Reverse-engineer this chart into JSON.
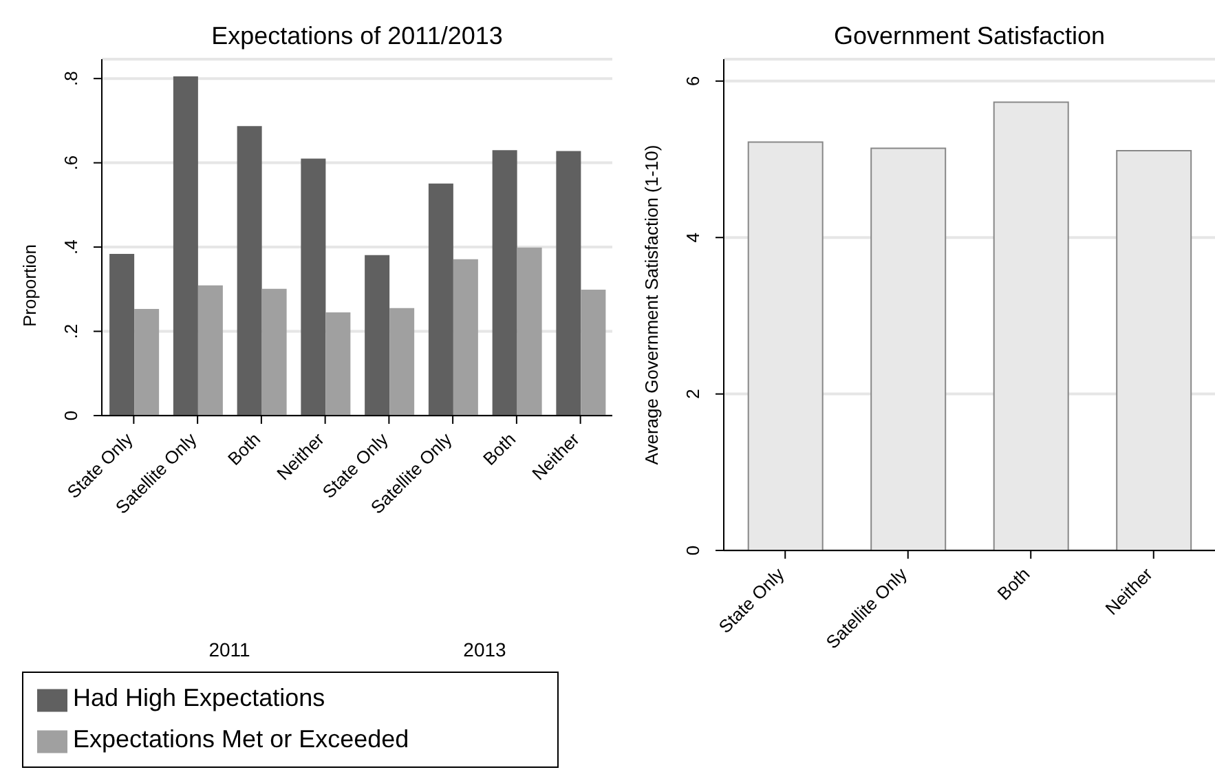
{
  "chart_data": [
    {
      "type": "bar",
      "title": "Expectations of 2011/2013",
      "ylabel": "Proportion",
      "categories": [
        "State Only",
        "Satellite Only",
        "Both",
        "Neither",
        "State Only",
        "Satellite Only",
        "Both",
        "Neither"
      ],
      "series": [
        {
          "name": "Had High Expectations",
          "color": "#606060",
          "values": [
            0.384,
            0.805,
            0.687,
            0.61,
            0.381,
            0.551,
            0.63,
            0.628
          ]
        },
        {
          "name": "Expectations Met or Exceeded",
          "color": "#a0a0a0",
          "values": [
            0.253,
            0.309,
            0.301,
            0.245,
            0.255,
            0.371,
            0.399,
            0.299
          ]
        }
      ],
      "annotations": [
        "2011",
        "2013"
      ],
      "ylim": [
        0,
        0.846
      ],
      "yticks": [
        {
          "value": 0,
          "label": "0"
        },
        {
          "value": 0.2,
          "label": ".2"
        },
        {
          "value": 0.4,
          "label": ".4"
        },
        {
          "value": 0.6,
          "label": ".6"
        },
        {
          "value": 0.8,
          "label": ".8"
        }
      ],
      "grid": "y",
      "legend": "bottom"
    },
    {
      "type": "bar",
      "title": "Government Satisfaction",
      "ylabel": "Average Government Satisfaction (1-10)",
      "categories": [
        "State Only",
        "Satellite Only",
        "Both",
        "Neither"
      ],
      "values": [
        5.22,
        5.14,
        5.73,
        5.11
      ],
      "color": "#e8e8e8",
      "ylim": [
        0,
        6.28
      ],
      "yticks": [
        0,
        2,
        4,
        6
      ],
      "grid": "y"
    }
  ]
}
